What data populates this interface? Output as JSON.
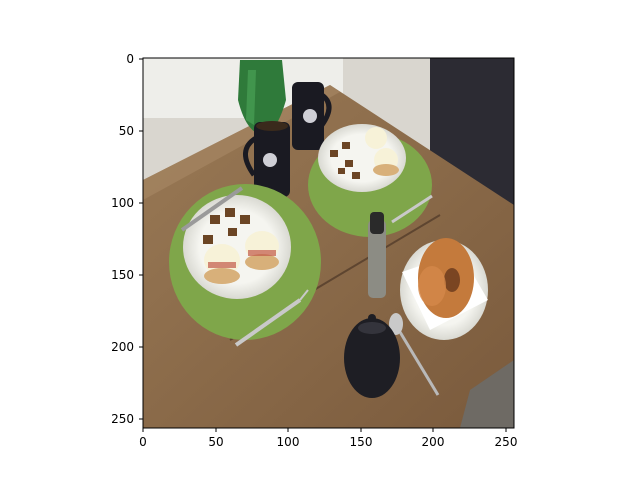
{
  "image": {
    "description_icon": "breakfast-table-photo",
    "x_ticks": [
      "0",
      "50",
      "100",
      "150",
      "200",
      "250"
    ],
    "y_ticks": [
      "0",
      "50",
      "100",
      "150",
      "200",
      "250"
    ],
    "x_range": [
      0,
      256
    ],
    "y_range": [
      0,
      256
    ],
    "colors": {
      "table": "#8a6a4a",
      "placemat": "#7fa64a",
      "plate": "#f2f2ee",
      "mug": "#1a1a22",
      "vase": "#2f7a3a"
    }
  }
}
